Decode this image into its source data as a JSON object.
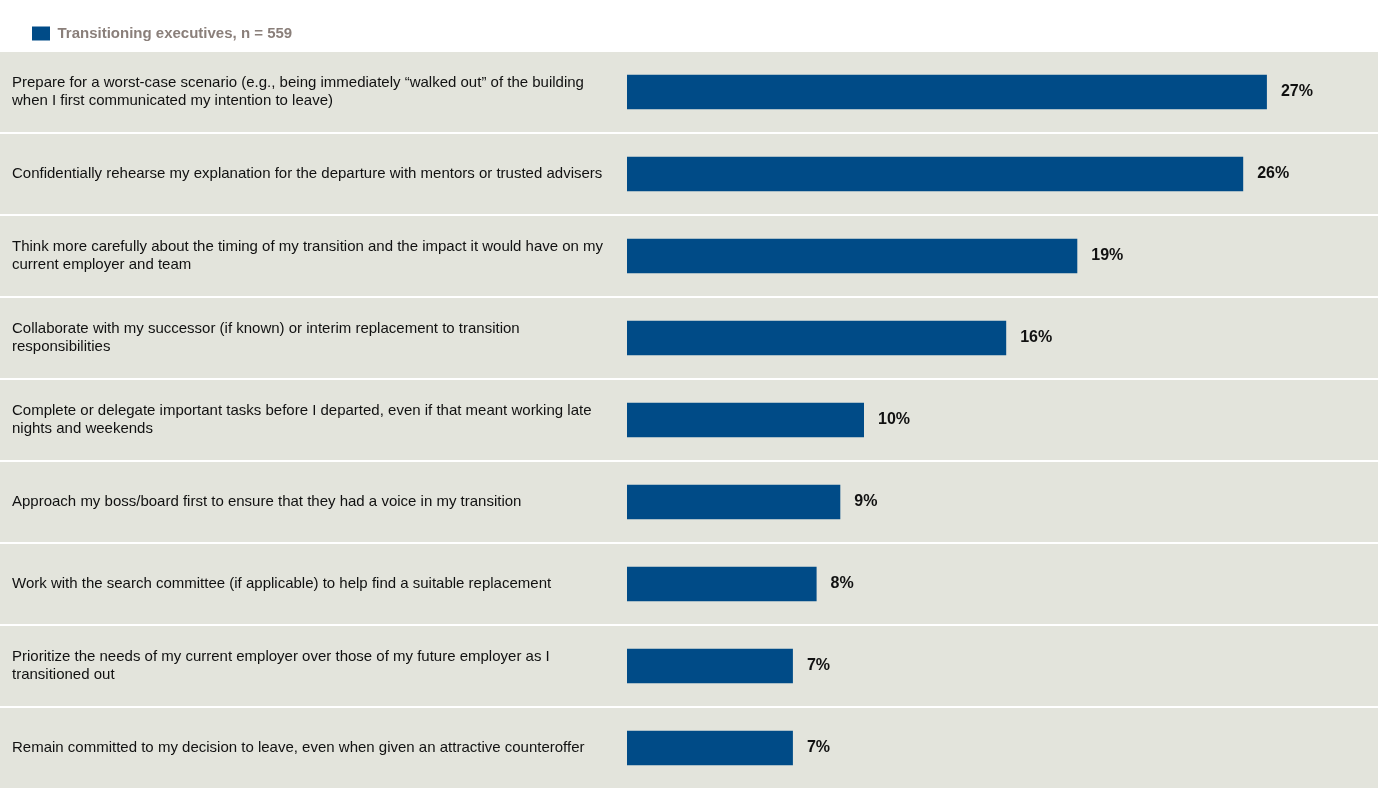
{
  "chart_data": {
    "type": "bar",
    "orientation": "horizontal",
    "legend": "top left",
    "categories": [
      "Prepare for a worst-case scenario (e.g., being immediately “walked out” of the building when I first communicated my intention to leave)",
      "Confidentially rehearse my explanation for the departure with mentors or trusted advisers",
      "Think more carefully about the timing of my transition and the impact it would have on my current employer and team",
      "Collaborate with my successor (if known) or interim replacement to transition responsibilities",
      "Complete or delegate important tasks before I departed, even if that meant working late nights and weekends",
      "Approach my boss/board first to ensure that they had a voice in my transition",
      "Work with the search committee (if applicable) to help find a suitable replacement",
      "Prioritize the needs of my current employer over those of my future employer as I transitioned out",
      "Remain committed to my decision to leave, even when given an attractive counteroffer"
    ],
    "series": [
      {
        "name": "Transitioning executives, n = 559",
        "color": "#004b87",
        "values": [
          27,
          26,
          19,
          16,
          10,
          9,
          8,
          7,
          7
        ],
        "value_labels": [
          "27%",
          "26%",
          "19%",
          "16%",
          "10%",
          "9%",
          "8%",
          "7%",
          "7%"
        ]
      }
    ]
  }
}
